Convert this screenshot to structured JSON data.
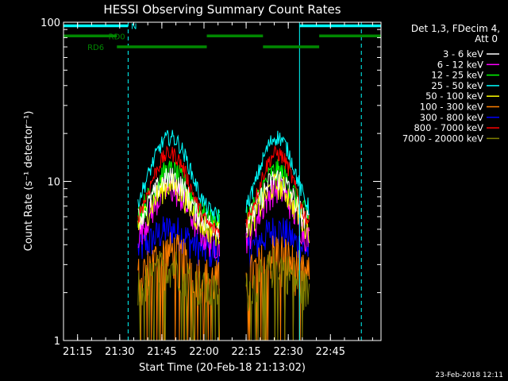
{
  "chart_data": {
    "type": "line",
    "title": "HESSI Observing Summary Count Rates",
    "xlabel": "Start Time (20-Feb-18 21:13:02)",
    "ylabel": "Count Rate (s⁻¹ detector⁻¹)",
    "x_tick_labels": [
      "21:15",
      "21:30",
      "21:45",
      "22:00",
      "22:15",
      "22:30",
      "22:45"
    ],
    "x_tick_minutes": [
      0,
      15,
      30,
      45,
      60,
      75,
      90
    ],
    "xlim_minutes": [
      -5,
      108
    ],
    "y_scale": "log",
    "ylim": [
      1,
      100
    ],
    "y_tick_labels": [
      "1",
      "10",
      "100"
    ],
    "legend_header": [
      "Det 1,3, FDecim 4,",
      "Att 0"
    ],
    "legend_position": "right",
    "footer_date": "23-Feb-2018 12:11",
    "series": [
      {
        "name": "3 - 6 keV",
        "color": "#ffffff",
        "base": 5.2,
        "peak": 10.5,
        "noise": 0.18
      },
      {
        "name": "6 - 12 keV",
        "color": "#ff00ff",
        "base": 4.0,
        "peak": 9.0,
        "noise": 0.22
      },
      {
        "name": "12 - 25 keV",
        "color": "#00ff00",
        "base": 5.5,
        "peak": 11.5,
        "noise": 0.2
      },
      {
        "name": "25 - 50 keV",
        "color": "#00ffff",
        "base": 6.0,
        "peak": 19.0,
        "noise": 0.12
      },
      {
        "name": "50 - 100 keV",
        "color": "#ffff00",
        "base": 4.8,
        "peak": 9.5,
        "noise": 0.2
      },
      {
        "name": "100 - 300 keV",
        "color": "#ff7f00",
        "base": 2.4,
        "peak": 3.6,
        "noise": 0.35
      },
      {
        "name": "300 - 800 keV",
        "color": "#0000ff",
        "base": 3.6,
        "peak": 5.0,
        "noise": 0.25
      },
      {
        "name": "800 - 7000 keV",
        "color": "#ff0000",
        "base": 4.8,
        "peak": 15.0,
        "noise": 0.12
      },
      {
        "name": "7000 - 20000 keV",
        "color": "#808000",
        "base": 2.0,
        "peak": 3.0,
        "noise": 0.3
      }
    ],
    "valid_intervals_minutes": [
      [
        21.5,
        50.5
      ],
      [
        60,
        82.5
      ]
    ],
    "flag_bars": [
      {
        "label": "N",
        "color": "#00ffff",
        "y": 95,
        "segments": [
          [
            -5,
            18
          ],
          [
            79,
            108
          ]
        ]
      },
      {
        "label": "RD0",
        "color": "#008800",
        "y": 82,
        "segments": [
          [
            -5,
            14
          ],
          [
            46,
            66
          ],
          [
            86,
            108
          ]
        ]
      },
      {
        "label": "RD6",
        "color": "#008800",
        "y": 70,
        "segments": [
          [
            14,
            46
          ],
          [
            66,
            86
          ]
        ]
      }
    ],
    "vertical_lines": [
      {
        "minute": -5,
        "color": "#00ffff",
        "style": "solid"
      },
      {
        "minute": 79,
        "color": "#00ffff",
        "style": "solid"
      },
      {
        "minute": 18,
        "color": "#00ffff",
        "style": "dashed"
      },
      {
        "minute": 101,
        "color": "#00ffff",
        "style": "dashed"
      }
    ]
  }
}
